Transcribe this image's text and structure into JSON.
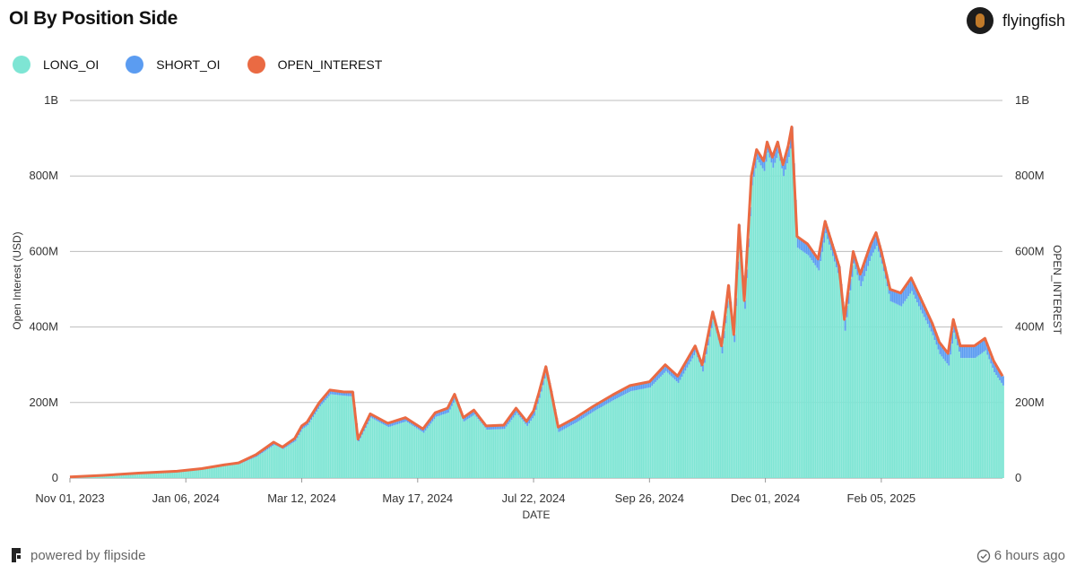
{
  "header": {
    "title": "OI By Position Side",
    "username": "flyingfish"
  },
  "footer": {
    "powered_by": "powered by flipside",
    "updated": "6 hours ago"
  },
  "colors": {
    "long": "#7ee5d4",
    "short": "#5b9cf1",
    "open_interest": "#ea6a43",
    "grid": "#bdbdbd"
  },
  "chart_data": {
    "type": "bar",
    "legend": [
      "LONG_OI",
      "SHORT_OI",
      "OPEN_INTEREST"
    ],
    "xlabel": "DATE",
    "ylabel": "Open Interest (USD)",
    "ylabel_right": "OPEN_INTEREST",
    "ylim": [
      0,
      1000000000
    ],
    "y_ticks": [
      "0",
      "200M",
      "400M",
      "600M",
      "800M",
      "1B"
    ],
    "x_ticks": [
      "Nov 01, 2023",
      "Jan 06, 2024",
      "Mar 12, 2024",
      "May 17, 2024",
      "Jul 22, 2024",
      "Sep 26, 2024",
      "Dec 01, 2024",
      "Feb 05, 2025"
    ],
    "x_range": [
      "2023-11-01",
      "2025-04-15"
    ],
    "series": [
      {
        "name": "OPEN_INTEREST",
        "points": [
          [
            "2023-11-01",
            3000000
          ],
          [
            "2023-11-20",
            7000000
          ],
          [
            "2023-12-10",
            13000000
          ],
          [
            "2024-01-01",
            18000000
          ],
          [
            "2024-01-15",
            25000000
          ],
          [
            "2024-01-28",
            35000000
          ],
          [
            "2024-02-05",
            40000000
          ],
          [
            "2024-02-15",
            62000000
          ],
          [
            "2024-02-25",
            95000000
          ],
          [
            "2024-03-01",
            82000000
          ],
          [
            "2024-03-08",
            105000000
          ],
          [
            "2024-03-12",
            138000000
          ],
          [
            "2024-03-15",
            148000000
          ],
          [
            "2024-03-22",
            200000000
          ],
          [
            "2024-03-28",
            233000000
          ],
          [
            "2024-04-05",
            228000000
          ],
          [
            "2024-04-10",
            228000000
          ],
          [
            "2024-04-13",
            103000000
          ],
          [
            "2024-04-20",
            170000000
          ],
          [
            "2024-04-30",
            145000000
          ],
          [
            "2024-05-10",
            160000000
          ],
          [
            "2024-05-20",
            130000000
          ],
          [
            "2024-05-27",
            173000000
          ],
          [
            "2024-06-03",
            185000000
          ],
          [
            "2024-06-07",
            222000000
          ],
          [
            "2024-06-12",
            160000000
          ],
          [
            "2024-06-18",
            180000000
          ],
          [
            "2024-06-25",
            138000000
          ],
          [
            "2024-07-05",
            140000000
          ],
          [
            "2024-07-12",
            185000000
          ],
          [
            "2024-07-18",
            150000000
          ],
          [
            "2024-07-22",
            178000000
          ],
          [
            "2024-07-25",
            225000000
          ],
          [
            "2024-07-29",
            295000000
          ],
          [
            "2024-08-01",
            230000000
          ],
          [
            "2024-08-05",
            135000000
          ],
          [
            "2024-08-15",
            160000000
          ],
          [
            "2024-08-25",
            190000000
          ],
          [
            "2024-09-05",
            220000000
          ],
          [
            "2024-09-15",
            245000000
          ],
          [
            "2024-09-26",
            255000000
          ],
          [
            "2024-10-05",
            300000000
          ],
          [
            "2024-10-12",
            270000000
          ],
          [
            "2024-10-22",
            350000000
          ],
          [
            "2024-10-26",
            300000000
          ],
          [
            "2024-11-01",
            440000000
          ],
          [
            "2024-11-06",
            350000000
          ],
          [
            "2024-11-10",
            510000000
          ],
          [
            "2024-11-13",
            380000000
          ],
          [
            "2024-11-16",
            670000000
          ],
          [
            "2024-11-19",
            470000000
          ],
          [
            "2024-11-23",
            800000000
          ],
          [
            "2024-11-26",
            870000000
          ],
          [
            "2024-11-30",
            840000000
          ],
          [
            "2024-12-02",
            890000000
          ],
          [
            "2024-12-05",
            850000000
          ],
          [
            "2024-12-08",
            890000000
          ],
          [
            "2024-12-11",
            830000000
          ],
          [
            "2024-12-14",
            880000000
          ],
          [
            "2024-12-16",
            930000000
          ],
          [
            "2024-12-19",
            640000000
          ],
          [
            "2024-12-25",
            620000000
          ],
          [
            "2024-12-31",
            580000000
          ],
          [
            "2025-01-04",
            680000000
          ],
          [
            "2025-01-08",
            620000000
          ],
          [
            "2025-01-12",
            560000000
          ],
          [
            "2025-01-15",
            420000000
          ],
          [
            "2025-01-20",
            600000000
          ],
          [
            "2025-01-24",
            540000000
          ],
          [
            "2025-01-30",
            620000000
          ],
          [
            "2025-02-02",
            650000000
          ],
          [
            "2025-02-05",
            600000000
          ],
          [
            "2025-02-10",
            500000000
          ],
          [
            "2025-02-16",
            490000000
          ],
          [
            "2025-02-22",
            530000000
          ],
          [
            "2025-02-27",
            480000000
          ],
          [
            "2025-03-03",
            440000000
          ],
          [
            "2025-03-06",
            410000000
          ],
          [
            "2025-03-10",
            360000000
          ],
          [
            "2025-03-15",
            330000000
          ],
          [
            "2025-03-18",
            420000000
          ],
          [
            "2025-03-22",
            350000000
          ],
          [
            "2025-03-30",
            350000000
          ],
          [
            "2025-04-05",
            370000000
          ],
          [
            "2025-04-10",
            310000000
          ],
          [
            "2025-04-15",
            270000000
          ]
        ]
      },
      {
        "name": "LONG_OI",
        "points": [
          [
            "2023-11-01",
            3000000
          ],
          [
            "2023-11-20",
            6500000
          ],
          [
            "2023-12-10",
            12000000
          ],
          [
            "2024-01-01",
            17000000
          ],
          [
            "2024-01-15",
            23000000
          ],
          [
            "2024-01-28",
            33000000
          ],
          [
            "2024-02-05",
            37000000
          ],
          [
            "2024-02-15",
            57000000
          ],
          [
            "2024-02-25",
            88000000
          ],
          [
            "2024-03-01",
            77000000
          ],
          [
            "2024-03-08",
            98000000
          ],
          [
            "2024-03-12",
            130000000
          ],
          [
            "2024-03-15",
            140000000
          ],
          [
            "2024-03-22",
            190000000
          ],
          [
            "2024-03-28",
            222000000
          ],
          [
            "2024-04-05",
            218000000
          ],
          [
            "2024-04-10",
            216000000
          ],
          [
            "2024-04-13",
            97000000
          ],
          [
            "2024-04-20",
            160000000
          ],
          [
            "2024-04-30",
            135000000
          ],
          [
            "2024-05-10",
            150000000
          ],
          [
            "2024-05-20",
            120000000
          ],
          [
            "2024-05-27",
            162000000
          ],
          [
            "2024-06-03",
            173000000
          ],
          [
            "2024-06-07",
            208000000
          ],
          [
            "2024-06-12",
            150000000
          ],
          [
            "2024-06-18",
            168000000
          ],
          [
            "2024-06-25",
            128000000
          ],
          [
            "2024-07-05",
            130000000
          ],
          [
            "2024-07-12",
            172000000
          ],
          [
            "2024-07-18",
            138000000
          ],
          [
            "2024-07-22",
            165000000
          ],
          [
            "2024-07-25",
            212000000
          ],
          [
            "2024-07-29",
            280000000
          ],
          [
            "2024-08-01",
            215000000
          ],
          [
            "2024-08-05",
            122000000
          ],
          [
            "2024-08-15",
            147000000
          ],
          [
            "2024-08-25",
            177000000
          ],
          [
            "2024-09-05",
            206000000
          ],
          [
            "2024-09-15",
            230000000
          ],
          [
            "2024-09-26",
            240000000
          ],
          [
            "2024-10-05",
            283000000
          ],
          [
            "2024-10-12",
            252000000
          ],
          [
            "2024-10-22",
            333000000
          ],
          [
            "2024-10-26",
            282000000
          ],
          [
            "2024-11-01",
            420000000
          ],
          [
            "2024-11-06",
            330000000
          ],
          [
            "2024-11-10",
            490000000
          ],
          [
            "2024-11-13",
            360000000
          ],
          [
            "2024-11-16",
            648000000
          ],
          [
            "2024-11-19",
            448000000
          ],
          [
            "2024-11-23",
            775000000
          ],
          [
            "2024-11-26",
            843000000
          ],
          [
            "2024-11-30",
            813000000
          ],
          [
            "2024-12-02",
            862000000
          ],
          [
            "2024-12-05",
            822000000
          ],
          [
            "2024-12-08",
            860000000
          ],
          [
            "2024-12-11",
            800000000
          ],
          [
            "2024-12-14",
            850000000
          ],
          [
            "2024-12-16",
            895000000
          ],
          [
            "2024-12-19",
            610000000
          ],
          [
            "2024-12-25",
            590000000
          ],
          [
            "2024-12-31",
            550000000
          ],
          [
            "2025-01-04",
            648000000
          ],
          [
            "2025-01-08",
            588000000
          ],
          [
            "2025-01-12",
            528000000
          ],
          [
            "2025-01-15",
            390000000
          ],
          [
            "2025-01-20",
            568000000
          ],
          [
            "2025-01-24",
            508000000
          ],
          [
            "2025-01-30",
            588000000
          ],
          [
            "2025-02-02",
            615000000
          ],
          [
            "2025-02-05",
            568000000
          ],
          [
            "2025-02-10",
            468000000
          ],
          [
            "2025-02-16",
            455000000
          ],
          [
            "2025-02-22",
            495000000
          ],
          [
            "2025-02-27",
            445000000
          ],
          [
            "2025-03-03",
            408000000
          ],
          [
            "2025-03-06",
            378000000
          ],
          [
            "2025-03-10",
            328000000
          ],
          [
            "2025-03-15",
            298000000
          ],
          [
            "2025-03-18",
            385000000
          ],
          [
            "2025-03-22",
            318000000
          ],
          [
            "2025-03-30",
            318000000
          ],
          [
            "2025-04-05",
            338000000
          ],
          [
            "2025-04-10",
            280000000
          ],
          [
            "2025-04-15",
            245000000
          ]
        ]
      },
      {
        "name": "SHORT_OI",
        "points": [
          [
            "2023-11-01",
            0
          ],
          [
            "2023-11-20",
            500000
          ],
          [
            "2023-12-10",
            1000000
          ],
          [
            "2024-01-01",
            1000000
          ],
          [
            "2024-01-15",
            2000000
          ],
          [
            "2024-01-28",
            2000000
          ],
          [
            "2024-02-05",
            3000000
          ],
          [
            "2024-02-15",
            5000000
          ],
          [
            "2024-02-25",
            7000000
          ],
          [
            "2024-03-01",
            5000000
          ],
          [
            "2024-03-08",
            7000000
          ],
          [
            "2024-03-12",
            8000000
          ],
          [
            "2024-03-15",
            8000000
          ],
          [
            "2024-03-22",
            10000000
          ],
          [
            "2024-03-28",
            11000000
          ],
          [
            "2024-04-05",
            10000000
          ],
          [
            "2024-04-10",
            12000000
          ],
          [
            "2024-04-13",
            6000000
          ],
          [
            "2024-04-20",
            10000000
          ],
          [
            "2024-04-30",
            10000000
          ],
          [
            "2024-05-10",
            10000000
          ],
          [
            "2024-05-20",
            10000000
          ],
          [
            "2024-05-27",
            11000000
          ],
          [
            "2024-06-03",
            12000000
          ],
          [
            "2024-06-07",
            14000000
          ],
          [
            "2024-06-12",
            10000000
          ],
          [
            "2024-06-18",
            12000000
          ],
          [
            "2024-06-25",
            10000000
          ],
          [
            "2024-07-05",
            10000000
          ],
          [
            "2024-07-12",
            13000000
          ],
          [
            "2024-07-18",
            12000000
          ],
          [
            "2024-07-22",
            13000000
          ],
          [
            "2024-07-25",
            13000000
          ],
          [
            "2024-07-29",
            15000000
          ],
          [
            "2024-08-01",
            15000000
          ],
          [
            "2024-08-05",
            13000000
          ],
          [
            "2024-08-15",
            13000000
          ],
          [
            "2024-08-25",
            13000000
          ],
          [
            "2024-09-05",
            14000000
          ],
          [
            "2024-09-15",
            15000000
          ],
          [
            "2024-09-26",
            15000000
          ],
          [
            "2024-10-05",
            17000000
          ],
          [
            "2024-10-12",
            18000000
          ],
          [
            "2024-10-22",
            17000000
          ],
          [
            "2024-10-26",
            18000000
          ],
          [
            "2024-11-01",
            20000000
          ],
          [
            "2024-11-06",
            20000000
          ],
          [
            "2024-11-10",
            20000000
          ],
          [
            "2024-11-13",
            20000000
          ],
          [
            "2024-11-16",
            22000000
          ],
          [
            "2024-11-19",
            22000000
          ],
          [
            "2024-11-23",
            25000000
          ],
          [
            "2024-11-26",
            27000000
          ],
          [
            "2024-11-30",
            27000000
          ],
          [
            "2024-12-02",
            28000000
          ],
          [
            "2024-12-05",
            28000000
          ],
          [
            "2024-12-08",
            30000000
          ],
          [
            "2024-12-11",
            30000000
          ],
          [
            "2024-12-14",
            30000000
          ],
          [
            "2024-12-16",
            35000000
          ],
          [
            "2024-12-19",
            30000000
          ],
          [
            "2024-12-25",
            30000000
          ],
          [
            "2024-12-31",
            30000000
          ],
          [
            "2025-01-04",
            32000000
          ],
          [
            "2025-01-08",
            32000000
          ],
          [
            "2025-01-12",
            32000000
          ],
          [
            "2025-01-15",
            30000000
          ],
          [
            "2025-01-20",
            32000000
          ],
          [
            "2025-01-24",
            32000000
          ],
          [
            "2025-01-30",
            32000000
          ],
          [
            "2025-02-02",
            35000000
          ],
          [
            "2025-02-05",
            32000000
          ],
          [
            "2025-02-10",
            32000000
          ],
          [
            "2025-02-16",
            35000000
          ],
          [
            "2025-02-22",
            35000000
          ],
          [
            "2025-02-27",
            35000000
          ],
          [
            "2025-03-03",
            32000000
          ],
          [
            "2025-03-06",
            32000000
          ],
          [
            "2025-03-10",
            32000000
          ],
          [
            "2025-03-15",
            32000000
          ],
          [
            "2025-03-18",
            35000000
          ],
          [
            "2025-03-22",
            32000000
          ],
          [
            "2025-03-30",
            32000000
          ],
          [
            "2025-04-05",
            32000000
          ],
          [
            "2025-04-10",
            30000000
          ],
          [
            "2025-04-15",
            25000000
          ]
        ]
      }
    ]
  }
}
